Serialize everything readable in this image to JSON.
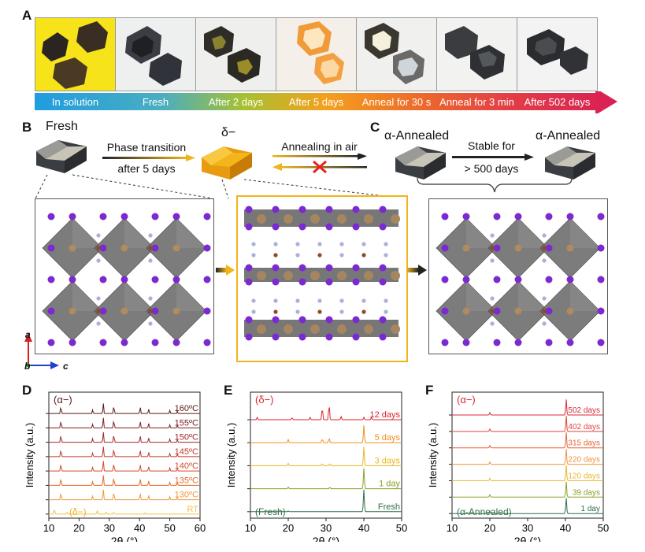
{
  "panels": {
    "A": "A",
    "B": "B",
    "C": "C",
    "D": "D",
    "E": "E",
    "F": "F"
  },
  "timeline": {
    "labels": [
      "In solution",
      "Fresh",
      "After 2 days",
      "After 5 days",
      "Anneal for 30 s",
      "Anneal for 3 min",
      "After 502 days"
    ],
    "colors": [
      "#1f9de0",
      "#3aa7c8",
      "#8cb830",
      "#f28a1c",
      "#ea5a2c",
      "#e0354a",
      "#e0264f"
    ]
  },
  "b_section": {
    "fresh_label": "Fresh",
    "arrow1_top": "Phase transition",
    "arrow1_bottom": "after 5 days",
    "delta_label": "δ−",
    "arrow2_top": "Annealing in air",
    "c_left_label": "α-Annealed",
    "c_arrow_top": "Stable for",
    "c_arrow_bottom": "> 500 days",
    "c_right_label": "α-Annealed"
  },
  "axes_legend": {
    "a": "a",
    "b": "b",
    "c": "c"
  },
  "chart_data": [
    {
      "type": "line",
      "panel": "D",
      "xlabel": "2θ (°)",
      "ylabel": "Intensity (a.u.)",
      "xlim": [
        10,
        60
      ],
      "xticks": [
        10,
        20,
        30,
        40,
        50,
        60
      ],
      "annotation_top": "(α−)",
      "annotation_bottom": "(δ−)",
      "series": [
        {
          "name": "160ºC",
          "color": "#5a1a1a"
        },
        {
          "name": "155ºC",
          "color": "#7a2020"
        },
        {
          "name": "150ºC",
          "color": "#a0282a"
        },
        {
          "name": "145ºC",
          "color": "#c0392b"
        },
        {
          "name": "140ºC",
          "color": "#d64a2a"
        },
        {
          "name": "135ºC",
          "color": "#e36c2c"
        },
        {
          "name": "130ºC",
          "color": "#f09a3a"
        },
        {
          "name": "RT",
          "color": "#f0c24a"
        }
      ]
    },
    {
      "type": "line",
      "panel": "E",
      "xlabel": "2θ (°)",
      "ylabel": "Intensity (a.u.)",
      "xlim": [
        10,
        50
      ],
      "xticks": [
        10,
        20,
        30,
        40,
        50
      ],
      "annotation_top": "(δ−)",
      "annotation_bottom": "(Fresh)",
      "series": [
        {
          "name": "12 days",
          "color": "#d9262a"
        },
        {
          "name": "5 days",
          "color": "#f0901e"
        },
        {
          "name": "3 days",
          "color": "#e8b820"
        },
        {
          "name": "1 day",
          "color": "#8aa028"
        },
        {
          "name": "Fresh",
          "color": "#2e6e4a"
        }
      ]
    },
    {
      "type": "line",
      "panel": "F",
      "xlabel": "2θ (°)",
      "ylabel": "Intensity (a.u.)",
      "xlim": [
        10,
        50
      ],
      "xticks": [
        10,
        20,
        30,
        40,
        50
      ],
      "annotation_top": "(α−)",
      "annotation_bottom": "(α-Annealed)",
      "series": [
        {
          "name": "502 days",
          "color": "#d92a3a"
        },
        {
          "name": "402 days",
          "color": "#e0453c"
        },
        {
          "name": "315 days",
          "color": "#e8643a"
        },
        {
          "name": "220 days",
          "color": "#f0943a"
        },
        {
          "name": "120 days",
          "color": "#e8b830"
        },
        {
          "name": "39 days",
          "color": "#8aa028"
        },
        {
          "name": "1 day",
          "color": "#2e6e4a"
        }
      ]
    }
  ]
}
